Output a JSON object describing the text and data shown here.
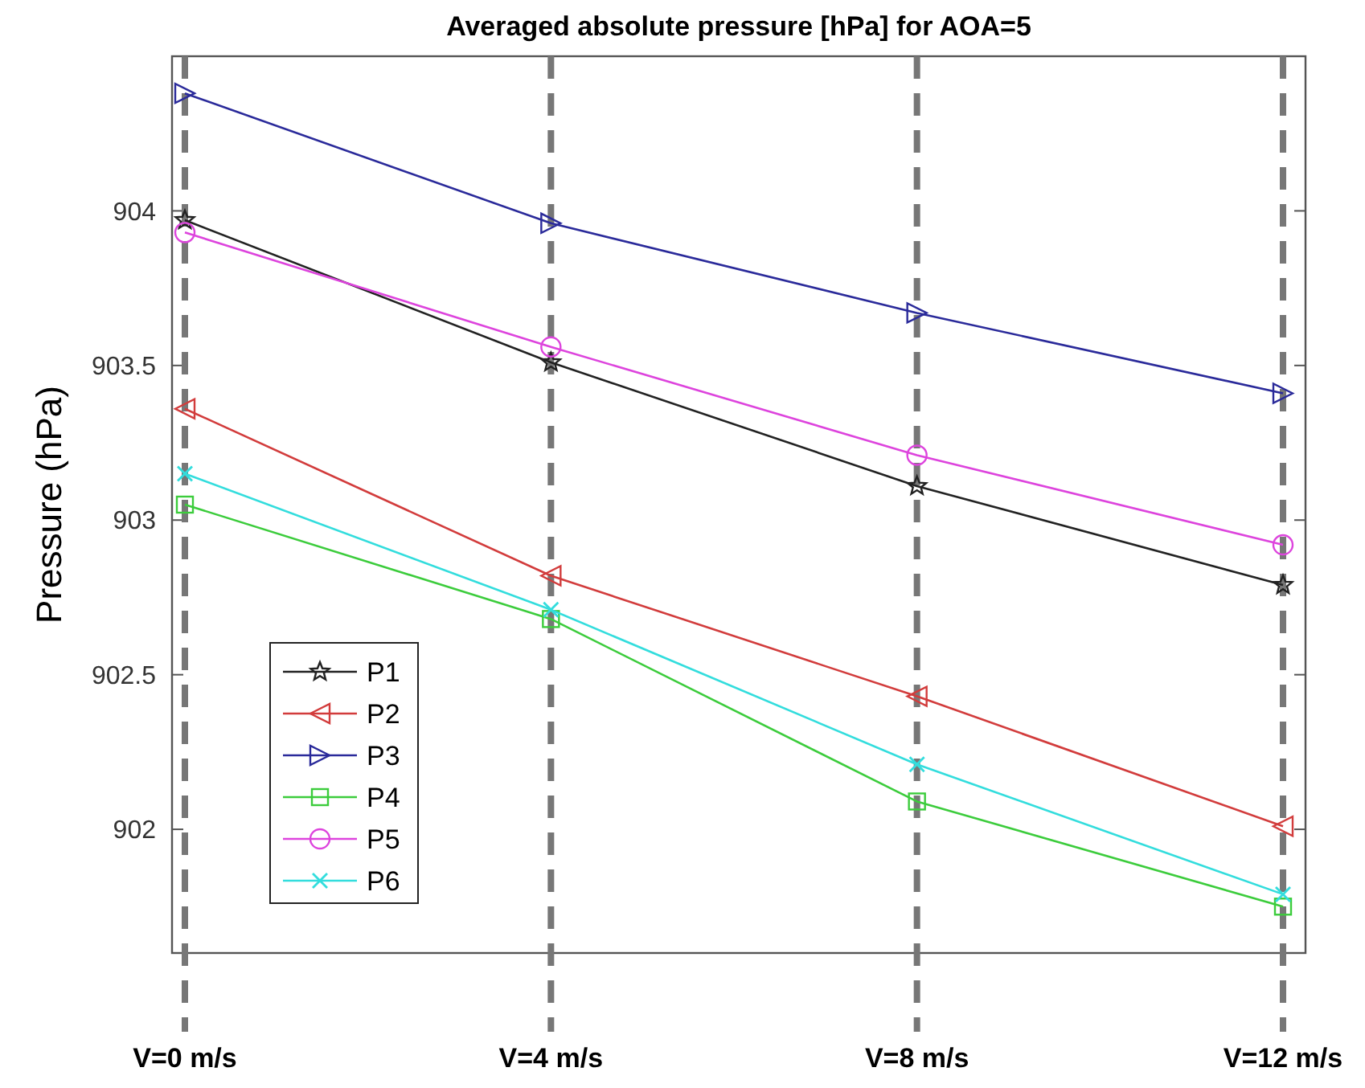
{
  "chart_data": {
    "type": "line",
    "title": "Averaged absolute pressure [hPa] for AOA=5",
    "ylabel": "Pressure (hPa)",
    "categories": [
      "V=0 m/s",
      "V=4 m/s",
      "V=8 m/s",
      "V=12 m/s"
    ],
    "series": [
      {
        "name": "P1",
        "color": "#222222",
        "marker": "star",
        "values": [
          903.97,
          903.51,
          903.11,
          902.79
        ]
      },
      {
        "name": "P2",
        "color": "#d23c3c",
        "marker": "triangle-left",
        "values": [
          903.36,
          902.82,
          902.43,
          902.01
        ]
      },
      {
        "name": "P3",
        "color": "#2a2a9a",
        "marker": "triangle-right",
        "values": [
          904.38,
          903.96,
          903.67,
          903.41
        ]
      },
      {
        "name": "P4",
        "color": "#3ccc3c",
        "marker": "square",
        "values": [
          903.05,
          902.68,
          902.09,
          901.75
        ]
      },
      {
        "name": "P5",
        "color": "#dd44dd",
        "marker": "circle",
        "values": [
          903.93,
          903.56,
          903.21,
          902.92
        ]
      },
      {
        "name": "P6",
        "color": "#33dddd",
        "marker": "cross",
        "values": [
          903.15,
          902.71,
          902.21,
          901.79
        ]
      }
    ],
    "ylim": [
      901.6,
      904.5
    ],
    "yticks": [
      902,
      902.5,
      903,
      903.5,
      904
    ],
    "grid": "x",
    "legend": "bottom left",
    "line_style": "solid"
  }
}
